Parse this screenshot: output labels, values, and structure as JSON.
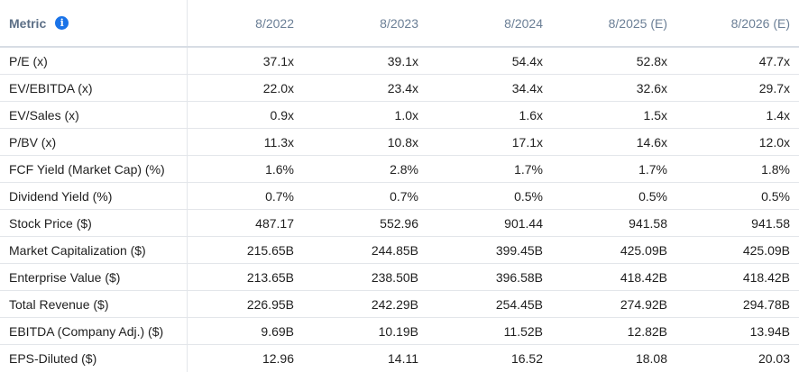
{
  "header": {
    "metric_label": "Metric",
    "info_icon": "info-icon",
    "columns": [
      "8/2022",
      "8/2023",
      "8/2024",
      "8/2025 (E)",
      "8/2026 (E)"
    ]
  },
  "rows": [
    {
      "metric": "P/E (x)",
      "values": [
        "37.1x",
        "39.1x",
        "54.4x",
        "52.8x",
        "47.7x"
      ]
    },
    {
      "metric": "EV/EBITDA (x)",
      "values": [
        "22.0x",
        "23.4x",
        "34.4x",
        "32.6x",
        "29.7x"
      ]
    },
    {
      "metric": "EV/Sales (x)",
      "values": [
        "0.9x",
        "1.0x",
        "1.6x",
        "1.5x",
        "1.4x"
      ]
    },
    {
      "metric": "P/BV (x)",
      "values": [
        "11.3x",
        "10.8x",
        "17.1x",
        "14.6x",
        "12.0x"
      ]
    },
    {
      "metric": "FCF Yield (Market Cap) (%)",
      "values": [
        "1.6%",
        "2.8%",
        "1.7%",
        "1.7%",
        "1.8%"
      ]
    },
    {
      "metric": "Dividend Yield (%)",
      "values": [
        "0.7%",
        "0.7%",
        "0.5%",
        "0.5%",
        "0.5%"
      ]
    },
    {
      "metric": "Stock Price ($)",
      "values": [
        "487.17",
        "552.96",
        "901.44",
        "941.58",
        "941.58"
      ]
    },
    {
      "metric": "Market Capitalization ($)",
      "values": [
        "215.65B",
        "244.85B",
        "399.45B",
        "425.09B",
        "425.09B"
      ]
    },
    {
      "metric": "Enterprise Value ($)",
      "values": [
        "213.65B",
        "238.50B",
        "396.58B",
        "418.42B",
        "418.42B"
      ]
    },
    {
      "metric": "Total Revenue ($)",
      "values": [
        "226.95B",
        "242.29B",
        "254.45B",
        "274.92B",
        "294.78B"
      ]
    },
    {
      "metric": "EBITDA (Company Adj.) ($)",
      "values": [
        "9.69B",
        "10.19B",
        "11.52B",
        "12.82B",
        "13.94B"
      ]
    },
    {
      "metric": "EPS-Diluted ($)",
      "values": [
        "12.96",
        "14.11",
        "16.52",
        "18.08",
        "20.03"
      ]
    }
  ],
  "colors": {
    "accent": "#1a73e8",
    "header_text": "#6b7f96",
    "row_border": "#e3e6ea"
  }
}
